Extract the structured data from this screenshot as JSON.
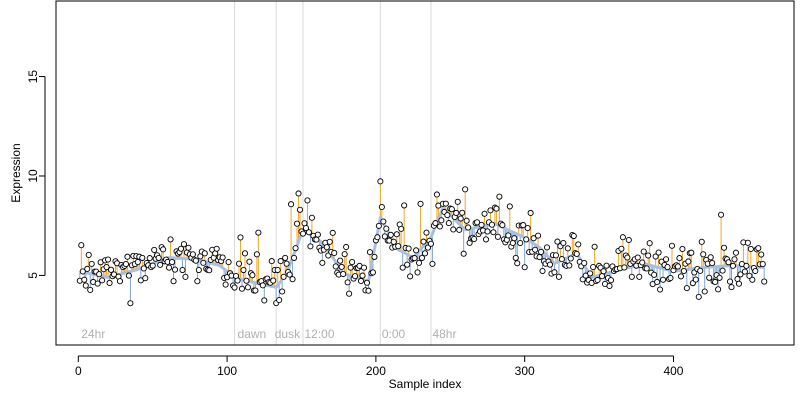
{
  "chart_data": {
    "type": "scatter",
    "title": "",
    "xlabel": "Sample index",
    "ylabel": "Expression",
    "xlim": [
      -15,
      481
    ],
    "ylim": [
      1.5,
      18.8
    ],
    "x_ticks": [
      0,
      100,
      200,
      300,
      400
    ],
    "y_ticks": [
      5,
      10,
      15
    ],
    "grid": false,
    "legend": "none",
    "phase_boundaries": [
      105,
      133,
      151,
      203,
      237
    ],
    "phase_labels": [
      {
        "text": "24hr",
        "x": 2
      },
      {
        "text": "dawn",
        "x": 107
      },
      {
        "text": "dusk",
        "x": 132
      },
      {
        "text": "12:00",
        "x": 152
      },
      {
        "text": "0:00",
        "x": 204
      },
      {
        "text": "48hr",
        "x": 238
      }
    ],
    "colors": {
      "points_fill": "#ffffff",
      "points_stroke": "#000000",
      "smooth_line": "#a9bfe0",
      "residual_up": "#f5a623",
      "residual_down": "#7fa6d6",
      "phase_line": "#d9d9d9",
      "phase_text": "#b0b0b0"
    },
    "n_points": 461,
    "trend_knots": [
      [
        1,
        5.2
      ],
      [
        20,
        4.9
      ],
      [
        40,
        5.3
      ],
      [
        60,
        5.9
      ],
      [
        80,
        5.8
      ],
      [
        95,
        5.5
      ],
      [
        105,
        4.9
      ],
      [
        120,
        4.6
      ],
      [
        133,
        4.4
      ],
      [
        140,
        5.1
      ],
      [
        151,
        7.3
      ],
      [
        165,
        6.6
      ],
      [
        178,
        5.1
      ],
      [
        195,
        4.7
      ],
      [
        203,
        7.9
      ],
      [
        215,
        6.3
      ],
      [
        225,
        5.9
      ],
      [
        237,
        6.9
      ],
      [
        245,
        8.4
      ],
      [
        260,
        7.3
      ],
      [
        280,
        7.6
      ],
      [
        300,
        6.9
      ],
      [
        310,
        6.4
      ],
      [
        320,
        5.6
      ],
      [
        335,
        6.1
      ],
      [
        345,
        4.9
      ],
      [
        360,
        5.2
      ],
      [
        380,
        5.6
      ],
      [
        400,
        5.2
      ],
      [
        420,
        5.4
      ],
      [
        440,
        5.5
      ],
      [
        461,
        5.4
      ]
    ],
    "noise_sd": 0.55,
    "seed": 20240517
  }
}
